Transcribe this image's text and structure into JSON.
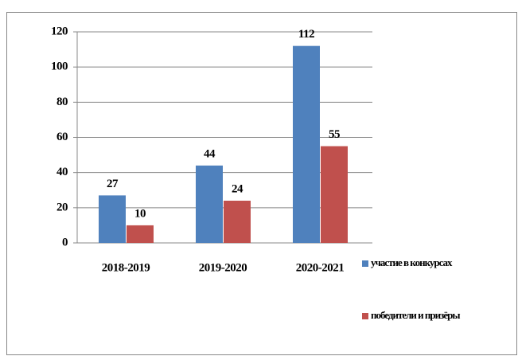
{
  "chart_data": {
    "type": "bar",
    "categories": [
      "2018-2019",
      "2019-2020",
      "2020-2021"
    ],
    "series": [
      {
        "name": "участие в конкурсах",
        "color": "#4f81bd",
        "values": [
          27,
          44,
          112
        ]
      },
      {
        "name": "победители и призёры",
        "color": "#c0504d",
        "values": [
          10,
          24,
          55
        ]
      }
    ],
    "ylim": [
      0,
      120
    ],
    "yticks": [
      0,
      20,
      40,
      60,
      80,
      100,
      120
    ],
    "grid": true,
    "legend": "right"
  }
}
